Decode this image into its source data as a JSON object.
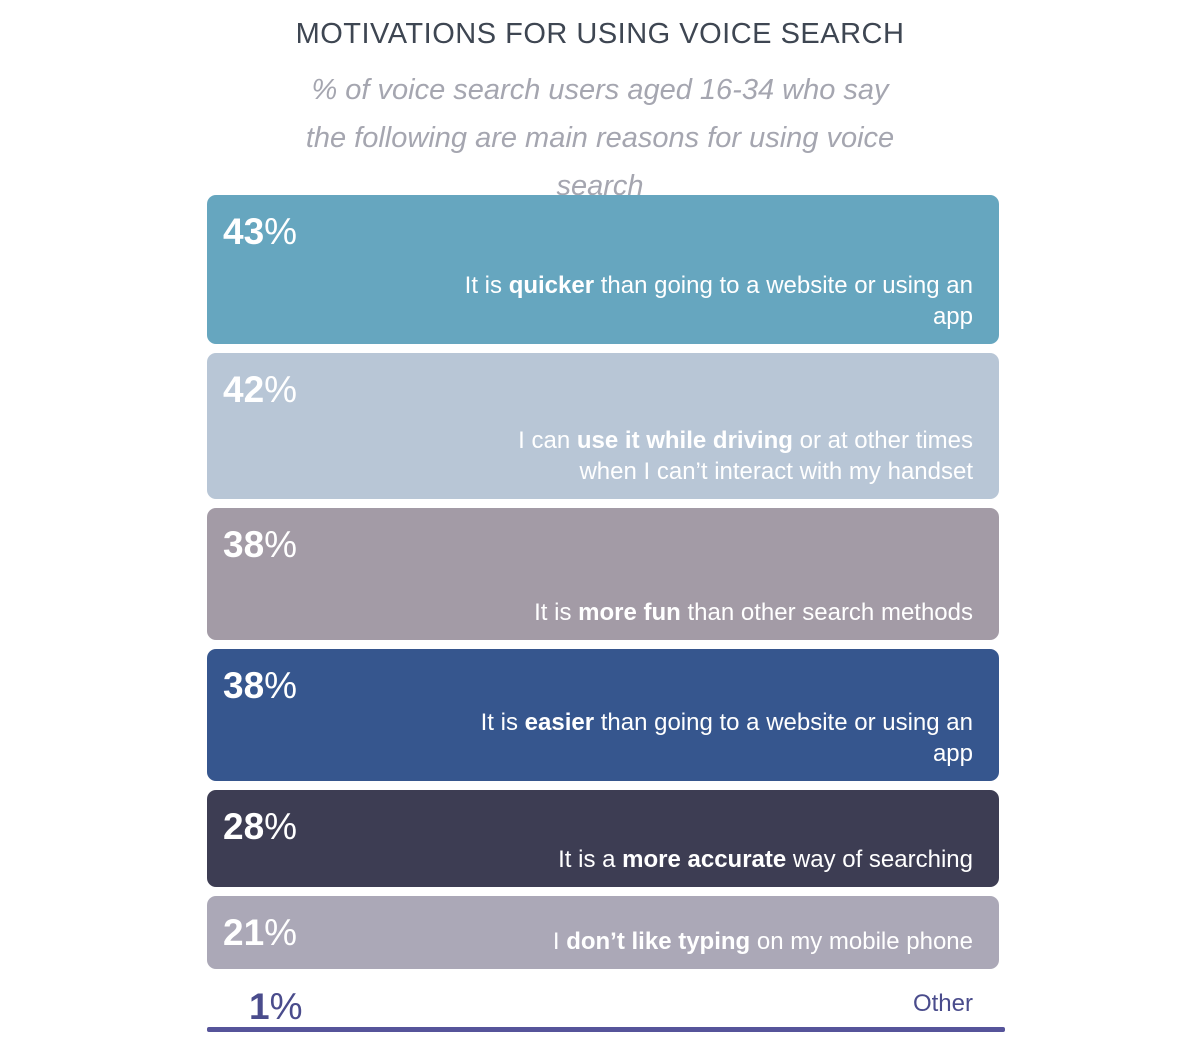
{
  "chart_data": {
    "type": "bar",
    "title": "MOTIVATIONS FOR USING VOICE SEARCH",
    "subtitle": "% of voice search users aged 16-34 who say the following are main reasons for using voice search",
    "unit": "%",
    "categories": [
      "It is quicker than going to a website or using an app",
      "I can use it while driving or at other times when I can't interact with my handset",
      "It is more fun than other search methods",
      "It is easier than going to a website or using an app",
      "It is a more accurate way of searching",
      "I don't like typing on my mobile phone",
      "Other"
    ],
    "values": [
      43,
      42,
      38,
      38,
      28,
      21,
      1
    ],
    "bars": [
      {
        "value": 43,
        "color": "#66a6bf",
        "label_parts": [
          [
            "It is ",
            false
          ],
          [
            "quicker",
            true
          ],
          [
            " than going to a website or using an app",
            false
          ]
        ]
      },
      {
        "value": 42,
        "color": "#b8c6d6",
        "label_parts": [
          [
            "I can ",
            false
          ],
          [
            "use it while driving",
            true
          ],
          [
            " or at other times ",
            false
          ],
          [
            "\n",
            false
          ],
          [
            "when I can’t interact with my handset",
            false
          ]
        ]
      },
      {
        "value": 38,
        "color": "#a39ba6",
        "label_parts": [
          [
            "It is ",
            false
          ],
          [
            "more fun",
            true
          ],
          [
            " than other search methods",
            false
          ]
        ]
      },
      {
        "value": 38,
        "color": "#36568e",
        "label_parts": [
          [
            "It is ",
            false
          ],
          [
            "easier",
            true
          ],
          [
            " than going to a website or using an app",
            false
          ]
        ]
      },
      {
        "value": 28,
        "color": "#3d3d53",
        "label_parts": [
          [
            "It is a ",
            false
          ],
          [
            "more accurate",
            true
          ],
          [
            " way of searching",
            false
          ]
        ]
      },
      {
        "value": 21,
        "color": "#aba8b7",
        "label_parts": [
          [
            "I ",
            false
          ],
          [
            "don’t like typing",
            true
          ],
          [
            " on my mobile phone",
            false
          ]
        ]
      }
    ],
    "other": {
      "value": 1,
      "label": "Other",
      "color": "#4a4c8c"
    }
  }
}
